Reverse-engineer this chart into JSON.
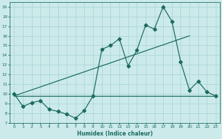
{
  "xlabel": "Humidex (Indice chaleur)",
  "xlim": [
    -0.5,
    23.5
  ],
  "ylim": [
    7,
    19.5
  ],
  "yticks": [
    7,
    8,
    9,
    10,
    11,
    12,
    13,
    14,
    15,
    16,
    17,
    18,
    19
  ],
  "xticks": [
    0,
    1,
    2,
    3,
    4,
    5,
    6,
    7,
    8,
    9,
    10,
    11,
    12,
    13,
    14,
    15,
    16,
    17,
    18,
    19,
    20,
    21,
    22,
    23
  ],
  "bg_color": "#cceaea",
  "grid_color": "#b0d8d8",
  "line_color": "#1a6b5e",
  "line1_x": [
    0,
    1,
    2,
    3,
    4,
    5,
    6,
    7,
    8,
    9,
    10,
    11,
    12,
    13,
    14,
    15,
    16,
    17,
    18,
    19,
    20,
    21,
    22,
    23
  ],
  "line1_y": [
    10.0,
    8.7,
    9.1,
    9.3,
    8.4,
    8.2,
    7.9,
    7.5,
    8.3,
    9.8,
    14.6,
    15.0,
    15.7,
    12.9,
    14.5,
    17.1,
    16.7,
    19.0,
    17.5,
    13.3,
    10.4,
    11.3,
    10.2,
    9.8
  ],
  "line2_x": [
    0,
    20
  ],
  "line2_y": [
    9.8,
    16.0
  ],
  "line3_x": [
    0,
    23
  ],
  "line3_y": [
    9.8,
    9.8
  ],
  "marker": "D",
  "markersize": 2.5,
  "linewidth": 0.9
}
